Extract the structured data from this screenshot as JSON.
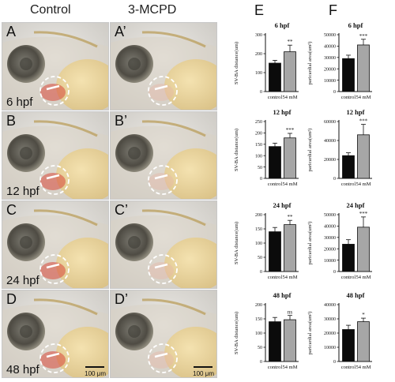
{
  "headers": {
    "control": "Control",
    "treated": "3-MCPD",
    "e": "E",
    "f": "F"
  },
  "rows": [
    {
      "left": "A",
      "right": "A’",
      "time": "6 hpf"
    },
    {
      "left": "B",
      "right": "B’",
      "time": "12 hpf"
    },
    {
      "left": "C",
      "right": "C’",
      "time": "24 hpf"
    },
    {
      "left": "D",
      "right": "D’",
      "time": "48 hpf"
    }
  ],
  "scale_bar": "100 μm",
  "colors": {
    "control_bar": "#0b0b0b",
    "treated_bar": "#a6a6a6",
    "heart_red": "#d9483a"
  },
  "chart_data": [
    {
      "type": "bar",
      "title": "6 hpf",
      "ylabel": "SV-BA distance(um)",
      "categories": [
        "control",
        "54 mM"
      ],
      "values": [
        150,
        210
      ],
      "errors": [
        15,
        35
      ],
      "sig": "**",
      "ylim": [
        0,
        300
      ],
      "yticks": [
        "0",
        "100",
        "200",
        "300"
      ]
    },
    {
      "type": "bar",
      "title": "12 hpf",
      "ylabel": "SV-BA distance(um)",
      "categories": [
        "control",
        "54 mM"
      ],
      "values": [
        140,
        178
      ],
      "errors": [
        15,
        20
      ],
      "sig": "***",
      "ylim": [
        0,
        250
      ],
      "yticks": [
        "0",
        "50",
        "100",
        "150",
        "200",
        "250"
      ]
    },
    {
      "type": "bar",
      "title": "24 hpf",
      "ylabel": "SV-BA distance(um)",
      "categories": [
        "control",
        "54 mM"
      ],
      "values": [
        140,
        165
      ],
      "errors": [
        15,
        15
      ],
      "sig": "**",
      "ylim": [
        0,
        200
      ],
      "yticks": [
        "0",
        "50",
        "100",
        "150",
        "200"
      ]
    },
    {
      "type": "bar",
      "title": "48 hpf",
      "ylabel": "SV-BA distance(um)",
      "categories": [
        "control",
        "54 mM"
      ],
      "values": [
        140,
        147
      ],
      "errors": [
        15,
        15
      ],
      "sig": "ns",
      "ylim": [
        0,
        200
      ],
      "yticks": [
        "0",
        "50",
        "100",
        "150",
        "200"
      ]
    },
    {
      "type": "bar",
      "title": "6 hpf",
      "ylabel": "paricardial area(um²)",
      "categories": [
        "control",
        "54 mM"
      ],
      "values": [
        29000,
        41000
      ],
      "errors": [
        3000,
        5000
      ],
      "sig": "***",
      "ylim": [
        0,
        50000
      ],
      "yticks": [
        "0",
        "10000",
        "20000",
        "30000",
        "40000",
        "50000"
      ]
    },
    {
      "type": "bar",
      "title": "12 hpf",
      "ylabel": "paricardial area(um²)",
      "categories": [
        "control",
        "54 mM"
      ],
      "values": [
        24000,
        46000
      ],
      "errors": [
        3000,
        11000
      ],
      "sig": "***",
      "ylim": [
        0,
        60000
      ],
      "yticks": [
        "0",
        "20000",
        "40000",
        "60000"
      ]
    },
    {
      "type": "bar",
      "title": "24 hpf",
      "ylabel": "paricardial area(um²)",
      "categories": [
        "control",
        "54 mM"
      ],
      "values": [
        24000,
        39000
      ],
      "errors": [
        4000,
        9000
      ],
      "sig": "***",
      "ylim": [
        0,
        50000
      ],
      "yticks": [
        "0",
        "10000",
        "20000",
        "30000",
        "40000",
        "50000"
      ]
    },
    {
      "type": "bar",
      "title": "48 hpf",
      "ylabel": "paricardial area(um²)",
      "categories": [
        "control",
        "54 mM"
      ],
      "values": [
        22500,
        28000
      ],
      "errors": [
        3000,
        2500
      ],
      "sig": "*",
      "ylim": [
        0,
        40000
      ],
      "yticks": [
        "0",
        "10000",
        "20000",
        "30000",
        "40000"
      ]
    }
  ]
}
